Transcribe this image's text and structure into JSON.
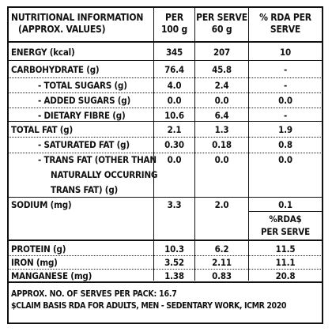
{
  "header": {
    "col1": [
      "NUTRITIONAL INFORMATION",
      "(APPROX. VALUES)"
    ],
    "col2": [
      "PER",
      "100 g"
    ],
    "col3": [
      "PER SERVE",
      "60 g"
    ],
    "col4": [
      "% RDA PER",
      "SERVE"
    ]
  },
  "rows": [
    {
      "label": "ENERGY (kcal)",
      "per100": "345",
      "serve": "207",
      "rda": "10"
    },
    {
      "label": "CARBOHYDRATE (g)",
      "per100": "76.4",
      "serve": "45.8",
      "rda": "-"
    },
    {
      "label": "- TOTAL SUGARS (g)",
      "per100": "4.0",
      "serve": "2.4",
      "rda": "-"
    },
    {
      "label": "- ADDED SUGARS (g)",
      "per100": "0.0",
      "serve": "0.0",
      "rda": "0.0"
    },
    {
      "label": "- DIETARY FIBRE (g)",
      "per100": "10.6",
      "serve": "6.4",
      "rda": "-"
    },
    {
      "label": "TOTAL FAT (g)",
      "per100": "2.1",
      "serve": "1.3",
      "rda": "1.9"
    },
    {
      "label": "- SATURATED FAT (g)",
      "per100": "0.30",
      "serve": "0.18",
      "rda": "0.8"
    },
    {
      "label": [
        "- TRANS FAT (OTHER THAN",
        "NATURALLY OCCURRING",
        "TRANS FAT) (g)"
      ],
      "per100": "0.0",
      "serve": "0.0",
      "rda": "0.0"
    },
    {
      "label": "SODIUM (mg)",
      "per100": "3.3",
      "serve": "2.0",
      "rda": "0.1"
    }
  ],
  "rda_subheader": [
    "%RDA$",
    "PER SERVE"
  ],
  "rows2": [
    {
      "label": "PROTEIN (g)",
      "per100": "10.3",
      "serve": "6.2",
      "rda": "11.5"
    },
    {
      "label": "IRON (mg)",
      "per100": "3.52",
      "serve": "2.11",
      "rda": "11.1"
    },
    {
      "label": "MANGANESE (mg)",
      "per100": "1.38",
      "serve": "0.83",
      "rda": "20.8"
    }
  ],
  "footer": {
    "serves": "APPROX. NO. OF SERVES PER PACK: 16.7",
    "claim": "$CLAIM BASIS RDA FOR ADULTS, MEN - SEDENTARY WORK, ICMR 2020"
  }
}
